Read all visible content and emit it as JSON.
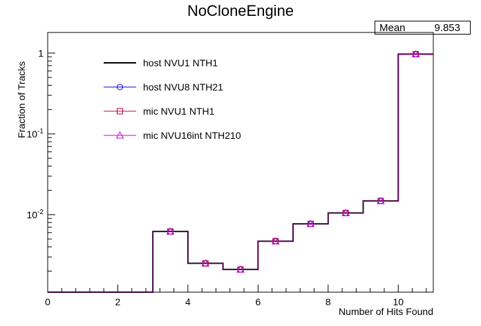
{
  "chart_data": {
    "type": "step-histogram",
    "title": "NoCloneEngine",
    "xlabel": "Number of Hits Found",
    "ylabel": "Fraction of Tracks",
    "xlim": [
      0,
      11
    ],
    "ylim": [
      0.0011,
      1.8
    ],
    "yscale": "log",
    "x_ticks": [
      0,
      2,
      4,
      6,
      8,
      10
    ],
    "y_ticks": [
      "10^-2",
      "10^-1",
      "1"
    ],
    "stats": {
      "label": "Mean",
      "value": "9.853"
    },
    "bins": [
      0,
      1,
      2,
      3,
      4,
      5,
      6,
      7,
      8,
      9,
      10,
      11
    ],
    "legend_position": "top-left",
    "series": [
      {
        "name": "host NVU1 NTH1",
        "marker": "none",
        "color": "#000000",
        "values": [
          0,
          0,
          0,
          0.0062,
          0.0025,
          0.0021,
          0.0047,
          0.0077,
          0.0105,
          0.0148,
          0.97
        ]
      },
      {
        "name": "host NVU8 NTH21",
        "marker": "circle",
        "color": "#0000cc",
        "values": [
          0,
          0,
          0,
          0.0062,
          0.0025,
          0.0021,
          0.0047,
          0.0077,
          0.0105,
          0.0148,
          0.97
        ]
      },
      {
        "name": "mic NVU1 NTH1",
        "marker": "square",
        "color": "#c00040",
        "values": [
          0,
          0,
          0,
          0.0062,
          0.0025,
          0.0021,
          0.0047,
          0.0077,
          0.0105,
          0.0148,
          0.97
        ]
      },
      {
        "name": "mic NVU16int NTH210",
        "marker": "triangle",
        "color": "#cc00cc",
        "values": [
          0,
          0,
          0,
          0.0062,
          0.0025,
          0.0021,
          0.0047,
          0.0077,
          0.0105,
          0.0148,
          0.97
        ]
      }
    ]
  }
}
